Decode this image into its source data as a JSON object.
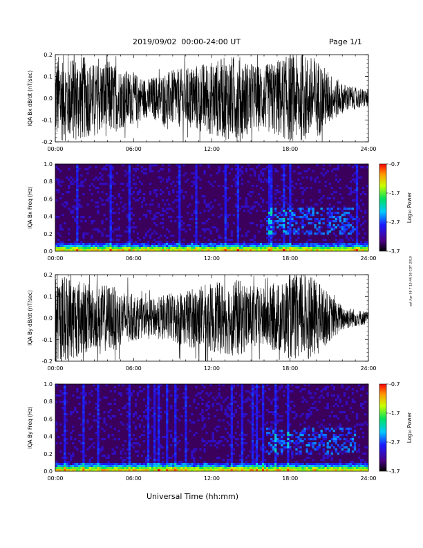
{
  "header": {
    "date_range": "2019/09/02  00:00-24:00 UT",
    "page": "Page 1/1"
  },
  "side_note": "ast Apr 06 7 13:44:16 CDT 2019",
  "x_axis_title": "Universal Time (hh:mm)",
  "colors": {
    "background": "#ffffff",
    "trace": "#000000",
    "spectrogram_base": "#3a005c"
  },
  "chart_data": [
    {
      "type": "line",
      "ylabel": "IQA Bx dB/dt (nT/sec)",
      "x_ticks": [
        "00:00",
        "06:00",
        "12:00",
        "18:00",
        "24:00"
      ],
      "y_ticks": [
        "0.2",
        "0.1",
        "0.0",
        "-0.1",
        "-0.2"
      ],
      "xlim": [
        0,
        24
      ],
      "ylim": [
        -0.2,
        0.2
      ],
      "envelope": {
        "hours": [
          0,
          1,
          2,
          3,
          4,
          5,
          6,
          7,
          8,
          9,
          10,
          11,
          12,
          13,
          14,
          15,
          16,
          17,
          18,
          19,
          20,
          21,
          22,
          23,
          24
        ],
        "amplitude": [
          0.2,
          0.2,
          0.2,
          0.16,
          0.18,
          0.14,
          0.12,
          0.09,
          0.11,
          0.13,
          0.14,
          0.16,
          0.17,
          0.19,
          0.2,
          0.16,
          0.15,
          0.18,
          0.2,
          0.2,
          0.19,
          0.12,
          0.07,
          0.05,
          0.04
        ]
      }
    },
    {
      "type": "heatmap",
      "ylabel": "IQA Bx Freq (Hz)",
      "x_ticks": [
        "00:00",
        "06:00",
        "12:00",
        "18:00",
        "24:00"
      ],
      "y_ticks": [
        "1.0",
        "0.8",
        "0.6",
        "0.4",
        "0.2",
        "0.0"
      ],
      "xlim": [
        0,
        24
      ],
      "ylim": [
        0.0,
        1.0
      ],
      "colorbar": {
        "label": "Log₁₀ Power",
        "ticks": [
          "-0.7",
          "-1.7",
          "-2.7",
          "-3.7"
        ],
        "range": [
          -3.7,
          -0.7
        ]
      }
    },
    {
      "type": "line",
      "ylabel": "IQA By dB/dt (nT/sec)",
      "x_ticks": [
        "00:00",
        "06:00",
        "12:00",
        "18:00",
        "24:00"
      ],
      "y_ticks": [
        "0.2",
        "0.1",
        "0.0",
        "-0.1",
        "-0.2"
      ],
      "xlim": [
        0,
        24
      ],
      "ylim": [
        -0.2,
        0.2
      ],
      "envelope": {
        "hours": [
          0,
          1,
          2,
          3,
          4,
          5,
          6,
          7,
          8,
          9,
          10,
          11,
          12,
          13,
          14,
          15,
          16,
          17,
          18,
          19,
          20,
          21,
          22,
          23,
          24
        ],
        "amplitude": [
          0.2,
          0.2,
          0.18,
          0.14,
          0.16,
          0.13,
          0.11,
          0.08,
          0.1,
          0.12,
          0.13,
          0.15,
          0.16,
          0.17,
          0.18,
          0.15,
          0.14,
          0.16,
          0.19,
          0.2,
          0.18,
          0.11,
          0.06,
          0.04,
          0.03
        ]
      }
    },
    {
      "type": "heatmap",
      "ylabel": "IQA By Freq (Hz)",
      "x_ticks": [
        "00:00",
        "06:00",
        "12:00",
        "18:00",
        "24:00"
      ],
      "y_ticks": [
        "1.0",
        "0.8",
        "0.6",
        "0.4",
        "0.2",
        "0.0"
      ],
      "xlim": [
        0,
        24
      ],
      "ylim": [
        0.0,
        1.0
      ],
      "colorbar": {
        "label": "Log₁₀ Power",
        "ticks": [
          "-0.7",
          "-1.7",
          "-2.7",
          "-3.7"
        ],
        "range": [
          -3.7,
          -0.7
        ]
      }
    }
  ]
}
